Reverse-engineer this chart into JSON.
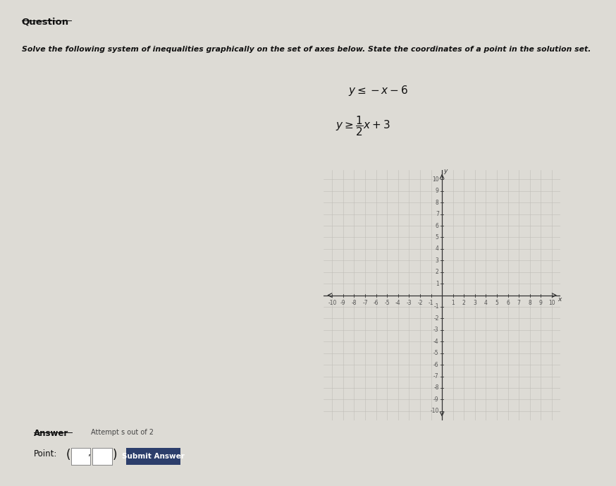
{
  "bg_color": "#dddbd5",
  "title": "Question",
  "instruction": "Solve the following system of inequalities graphically on the set of axes below. State the coordinates of a point in the solution set.",
  "answer_label": "Answer",
  "attempt_label": "Attempt s out of 2",
  "point_label": "Point:",
  "submit_label": "Submit Answer",
  "axis_min": -10,
  "axis_max": 10,
  "axis_label_x": "x",
  "axis_label_y": "y",
  "grid_color": "#c0bdb8",
  "axis_color": "#333333",
  "tick_label_color": "#555555",
  "tick_fontsize": 5.5,
  "submit_bg": "#2c3e6b",
  "submit_fg": "#ffffff"
}
